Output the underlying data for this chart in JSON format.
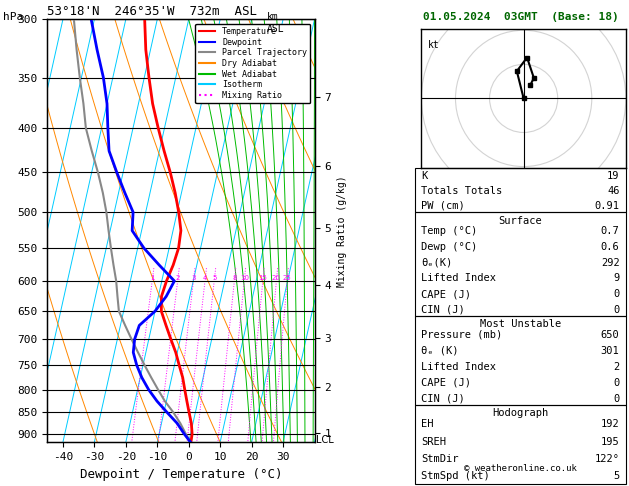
{
  "title_left": "53°18'N  246°35'W  732m  ASL",
  "title_right": "01.05.2024  03GMT  (Base: 18)",
  "label_hpa": "hPa",
  "label_km": "km\nASL",
  "xlabel": "Dewpoint / Temperature (°C)",
  "ylabel_right": "Mixing Ratio (g/kg)",
  "pressure_levels": [
    300,
    350,
    400,
    450,
    500,
    550,
    600,
    650,
    700,
    750,
    800,
    850,
    900
  ],
  "temp_range": [
    -45,
    40
  ],
  "temp_ticks": [
    -40,
    -30,
    -20,
    -10,
    0,
    10,
    20,
    30
  ],
  "pmin": 300,
  "pmax": 920,
  "temp_profile_p": [
    920,
    900,
    875,
    850,
    825,
    800,
    775,
    750,
    725,
    700,
    675,
    650,
    625,
    600,
    575,
    550,
    525,
    500,
    475,
    450,
    425,
    400,
    375,
    350,
    325,
    300
  ],
  "temp_profile_t": [
    0.7,
    0.5,
    -0.5,
    -2.0,
    -3.5,
    -5.0,
    -6.5,
    -8.5,
    -10.5,
    -13.0,
    -15.5,
    -18.0,
    -19.0,
    -18.5,
    -17.5,
    -17.0,
    -17.5,
    -19.5,
    -22.0,
    -25.0,
    -28.5,
    -32.0,
    -35.5,
    -38.5,
    -41.5,
    -44.0
  ],
  "dewp_profile_p": [
    920,
    900,
    875,
    850,
    825,
    800,
    775,
    750,
    725,
    700,
    675,
    650,
    625,
    600,
    575,
    550,
    525,
    500,
    475,
    450,
    425,
    400,
    375,
    350,
    325,
    300
  ],
  "dewp_profile_t": [
    0.6,
    -2.0,
    -5.0,
    -9.0,
    -13.0,
    -16.5,
    -19.5,
    -22.0,
    -24.0,
    -24.5,
    -24.0,
    -20.0,
    -17.5,
    -16.0,
    -22.0,
    -28.0,
    -33.0,
    -34.0,
    -38.0,
    -42.0,
    -46.0,
    -48.0,
    -50.0,
    -53.0,
    -57.0,
    -61.0
  ],
  "parcel_profile_p": [
    920,
    900,
    875,
    850,
    825,
    800,
    775,
    750,
    725,
    700,
    675,
    650,
    625,
    600,
    575,
    550,
    525,
    500,
    475,
    450,
    425,
    400,
    375,
    350,
    325,
    300
  ],
  "parcel_profile_t": [
    0.7,
    -1.5,
    -4.0,
    -7.0,
    -10.5,
    -13.5,
    -16.5,
    -19.5,
    -22.5,
    -25.5,
    -28.5,
    -31.5,
    -33.0,
    -34.5,
    -36.5,
    -38.5,
    -40.5,
    -42.5,
    -45.0,
    -48.0,
    -51.5,
    -55.0,
    -57.5,
    -60.5,
    -63.5,
    -66.5
  ],
  "temp_color": "#ff0000",
  "dewp_color": "#0000ff",
  "parcel_color": "#888888",
  "isotherm_color": "#00ccff",
  "dry_adiabat_color": "#ff8800",
  "wet_adiabat_color": "#00bb00",
  "mixing_ratio_color": "#ff00ff",
  "legend_items": [
    [
      "Temperature",
      "#ff0000",
      "-"
    ],
    [
      "Dewpoint",
      "#0000ff",
      "-"
    ],
    [
      "Parcel Trajectory",
      "#888888",
      "-"
    ],
    [
      "Dry Adiabat",
      "#ff8800",
      "-"
    ],
    [
      "Wet Adiabat",
      "#00bb00",
      "-"
    ],
    [
      "Isotherm",
      "#00ccff",
      "-"
    ],
    [
      "Mixing Ratio",
      "#ff00ff",
      ":"
    ]
  ],
  "stats": {
    "K": 19,
    "Totals Totals": 46,
    "PW (cm)": 0.91,
    "Surface": {
      "Temp (C)": 0.7,
      "Dewp (C)": 0.6,
      "theta_e (K)": 292,
      "Lifted Index": 9,
      "CAPE (J)": 0,
      "CIN (J)": 0
    },
    "Most Unstable": {
      "Pressure (mb)": 650,
      "theta_e (K)": 301,
      "Lifted Index": 2,
      "CAPE (J)": 0,
      "CIN (J)": 0
    },
    "Hodograph": {
      "EH": 192,
      "SREH": 195,
      "StmDir": "122°",
      "StmSpd (kt)": 5
    }
  },
  "mixing_ratio_lines": [
    1,
    2,
    3,
    4,
    5,
    8,
    10,
    15,
    20,
    25
  ],
  "km_labels": [
    1,
    2,
    3,
    4,
    5,
    6,
    7
  ],
  "km_pressures": [
    898,
    795,
    698,
    607,
    522,
    442,
    368
  ],
  "hodo_u": [
    0,
    -2,
    1,
    3,
    2
  ],
  "hodo_v": [
    0,
    8,
    12,
    6,
    4
  ],
  "lcl_pressure": 915
}
